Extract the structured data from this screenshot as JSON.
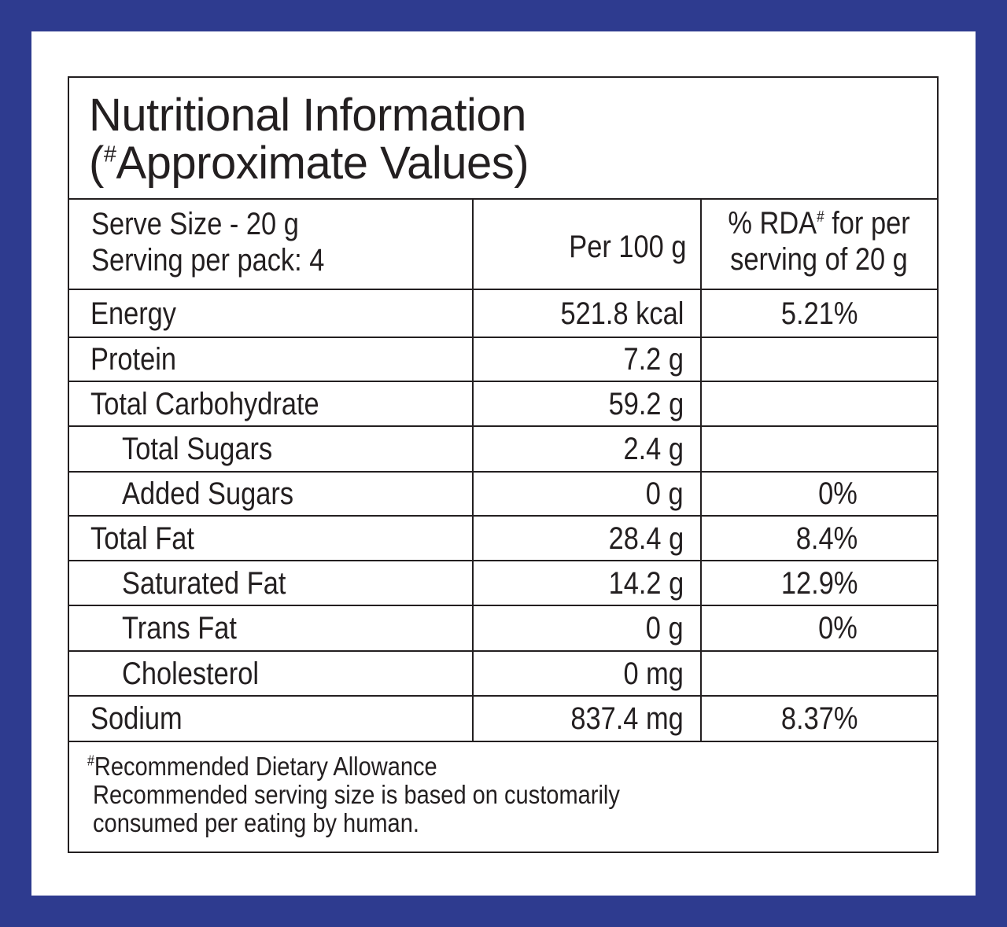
{
  "title": {
    "line1": "Nutritional Information",
    "line2_open": "(",
    "line2_mark": "#",
    "line2_rest": "Approximate Values)"
  },
  "header": {
    "serve_size": "Serve Size - 20 g",
    "serving_per_pack": "Serving per pack: 4",
    "per_100g": "Per 100 g",
    "rda_line1_a": "% RDA",
    "rda_line1_mark": "#",
    "rda_line1_b": " for per",
    "rda_line2": "serving of 20 g"
  },
  "rows": [
    {
      "nutrient": "Energy",
      "per100": "521.8 kcal",
      "rda": "5.21%",
      "indent": false
    },
    {
      "nutrient": "Protein",
      "per100": "7.2 g",
      "rda": "",
      "indent": false
    },
    {
      "nutrient": "Total Carbohydrate",
      "per100": "59.2 g",
      "rda": "",
      "indent": false
    },
    {
      "nutrient": "Total Sugars",
      "per100": "2.4 g",
      "rda": "",
      "indent": true
    },
    {
      "nutrient": "Added Sugars",
      "per100": "0 g",
      "rda": "0%",
      "indent": true
    },
    {
      "nutrient": "Total Fat",
      "per100": "28.4 g",
      "rda": "8.4%",
      "indent": false
    },
    {
      "nutrient": "Saturated Fat",
      "per100": "14.2 g",
      "rda": "12.9%",
      "indent": true
    },
    {
      "nutrient": "Trans Fat",
      "per100": "0 g",
      "rda": "0%",
      "indent": true
    },
    {
      "nutrient": "Cholesterol",
      "per100": "0 mg",
      "rda": "",
      "indent": true
    },
    {
      "nutrient": "Sodium",
      "per100": "837.4 mg",
      "rda": "8.37%",
      "indent": false
    }
  ],
  "footnote": {
    "mark": "#",
    "line1": "Recommended Dietary Allowance",
    "line2": "Recommended serving size is based on customarily",
    "line3": "consumed per eating  by human."
  },
  "colors": {
    "border_blue": "#2e3b8f",
    "ink": "#231f20",
    "paper": "#ffffff"
  }
}
